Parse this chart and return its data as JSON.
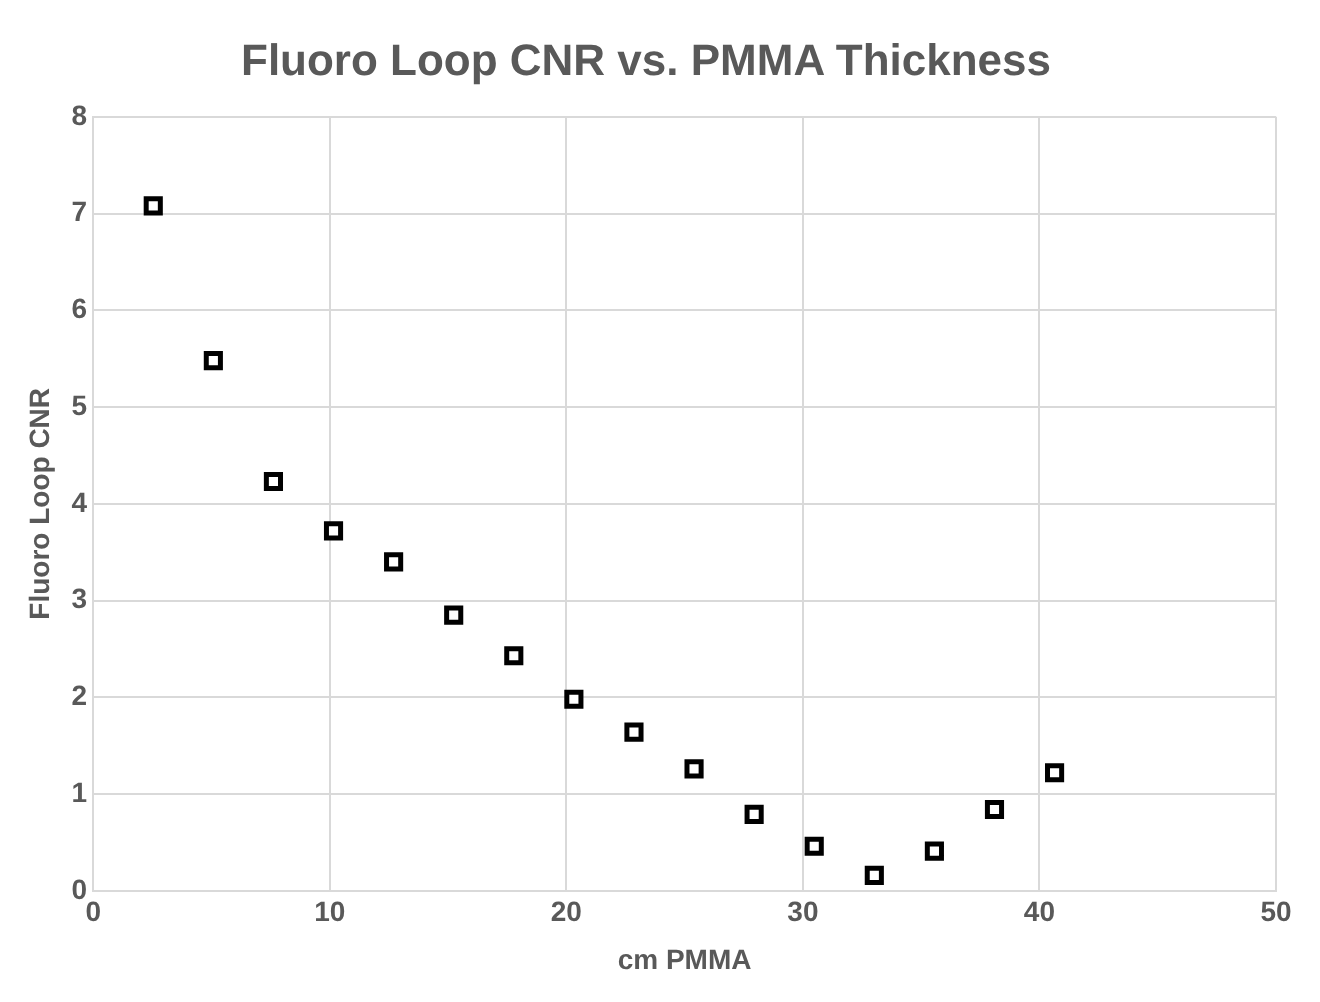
{
  "chart_data": {
    "type": "scatter",
    "title": "Fluoro Loop CNR vs. PMMA Thickness",
    "xlabel": "cm PMMA",
    "ylabel": "Fluoro Loop CNR",
    "x": [
      2.54,
      5.08,
      7.62,
      10.16,
      12.7,
      15.24,
      17.78,
      20.32,
      22.86,
      25.4,
      27.94,
      30.48,
      33.02,
      35.56,
      38.1,
      40.64
    ],
    "series": [
      {
        "color": "#000000",
        "values": [
          7.08,
          5.48,
          4.23,
          3.72,
          3.4,
          2.85,
          2.43,
          1.98,
          1.64,
          1.26,
          0.79,
          0.46,
          0.16,
          0.41,
          0.84,
          1.22
        ]
      }
    ],
    "xlim": [
      0,
      50
    ],
    "xticks": [
      0,
      10,
      20,
      30,
      40,
      50
    ],
    "ylim": [
      0,
      8
    ],
    "yticks": [
      0,
      1,
      2,
      3,
      4,
      5,
      6,
      7,
      8
    ],
    "grid": true,
    "legend": false,
    "marker": "square"
  }
}
